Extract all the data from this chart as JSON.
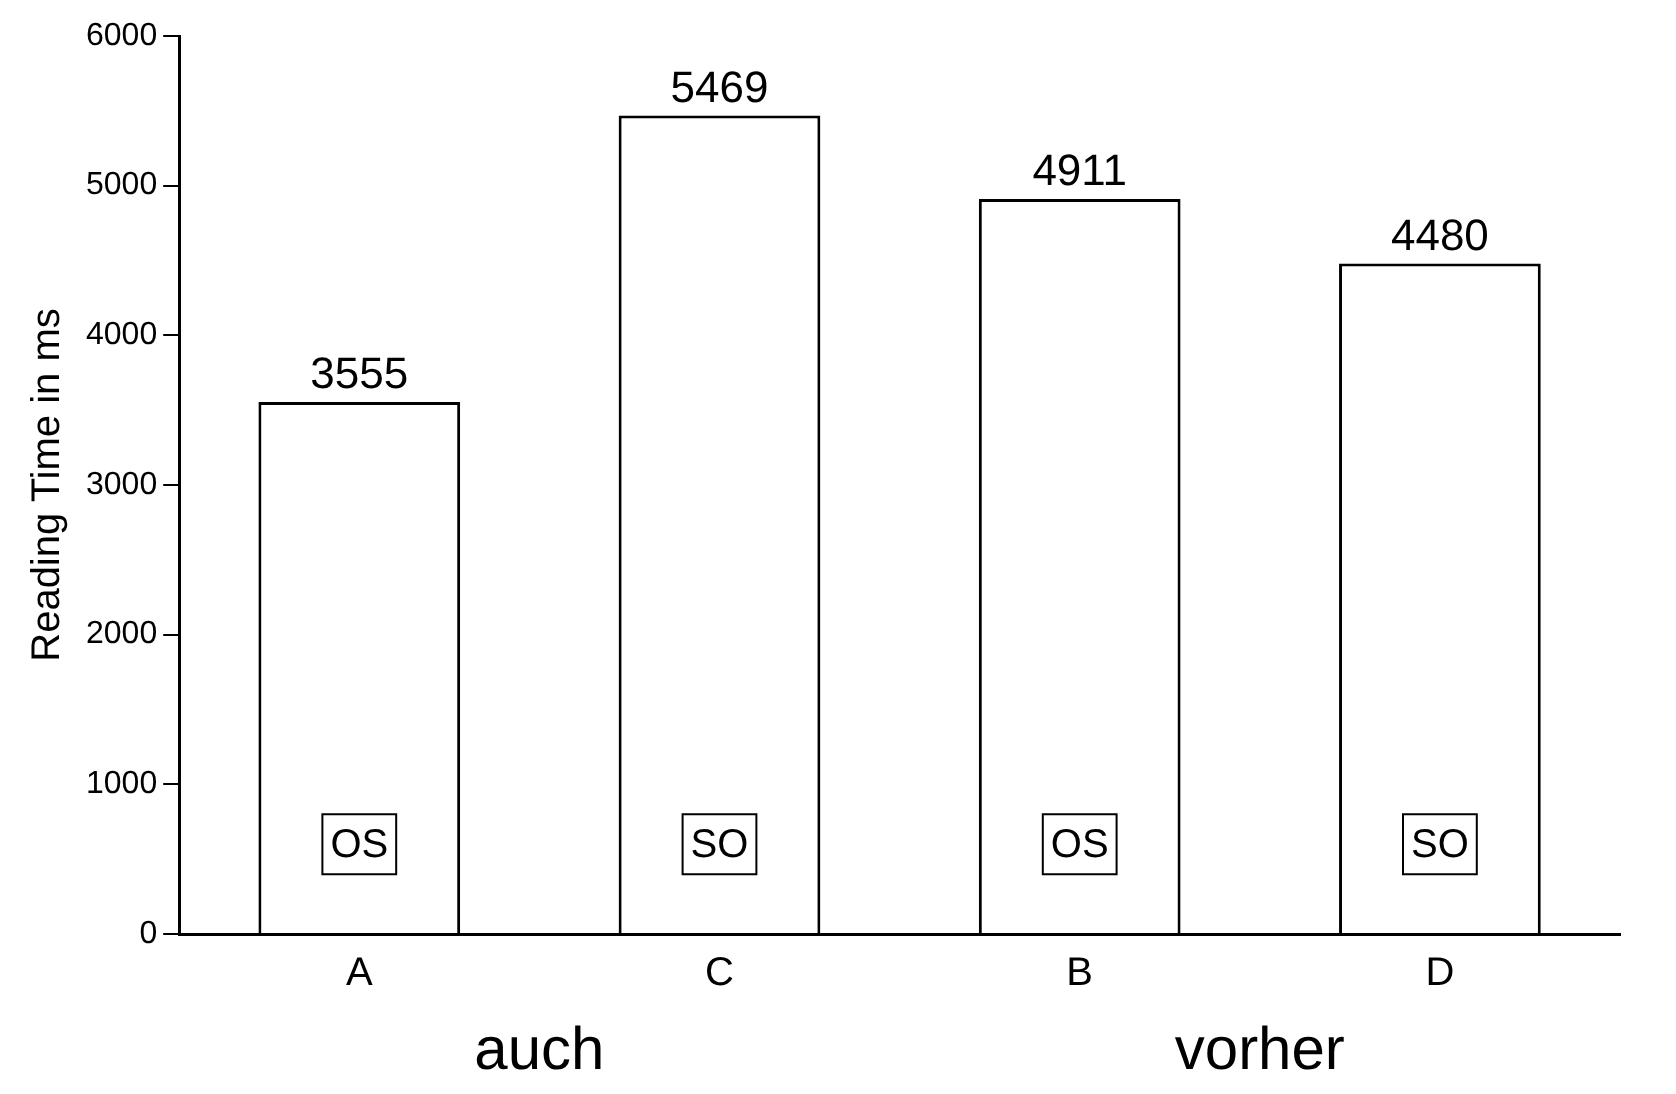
{
  "chart_data": {
    "type": "bar",
    "ylabel": "Reading Time in ms",
    "categories": [
      "A",
      "C",
      "B",
      "D"
    ],
    "values": [
      3555,
      5469,
      4911,
      4480
    ],
    "color": "#ffffff",
    "ylim": [
      0,
      6000
    ],
    "yticks": [
      0,
      1000,
      2000,
      3000,
      4000,
      5000,
      6000
    ],
    "grid": false,
    "legend": false,
    "data_labels": true,
    "annotations": [
      {
        "text": "OS",
        "x": "A",
        "y": 600
      },
      {
        "text": "SO",
        "x": "C",
        "y": 600
      },
      {
        "text": "OS",
        "x": "B",
        "y": 600
      },
      {
        "text": "SO",
        "x": "D",
        "y": 600
      },
      "auch",
      "vorher"
    ]
  }
}
